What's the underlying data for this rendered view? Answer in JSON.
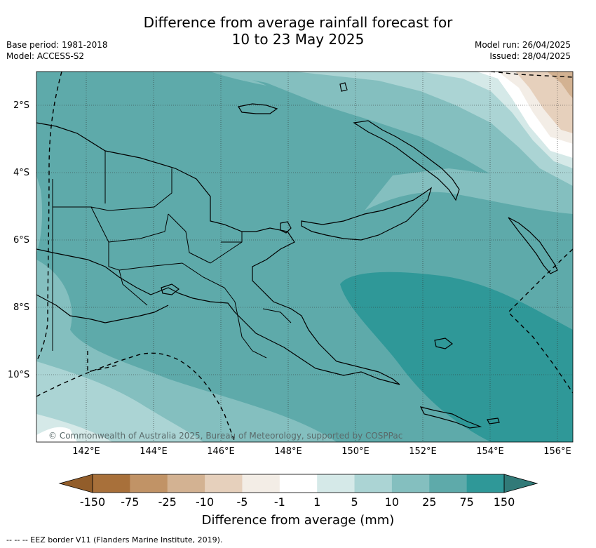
{
  "header": {
    "title_line1": "Difference from average rainfall forecast for",
    "title_line2": "10 to 23 May 2025",
    "base_period": "Base period: 1981-2018",
    "model": "Model: ACCESS-S2",
    "model_run": "Model run: 26/04/2025",
    "issued": "Issued: 28/04/2025"
  },
  "axes": {
    "lat_labels": [
      "2°S",
      "4°S",
      "6°S",
      "8°S",
      "10°S"
    ],
    "lon_labels": [
      "142°E",
      "144°E",
      "146°E",
      "148°E",
      "150°E",
      "152°E",
      "154°E",
      "156°E"
    ]
  },
  "map": {
    "copyright": "© Commonwealth of Australia 2025, Bureau of Meteorology, supported by COSPPac",
    "land_outline_color": "#000000"
  },
  "colorbar": {
    "title": "Difference from average (mm)",
    "labels": [
      "-150",
      "-75",
      "-25",
      "-10",
      "-5",
      "-1",
      "1",
      "5",
      "10",
      "25",
      "75",
      "150"
    ],
    "colors": [
      "#a8703a",
      "#c19366",
      "#d3b292",
      "#e6d0bc",
      "#f3ede6",
      "#ffffff",
      "#d5e9e8",
      "#abd4d4",
      "#84bfbf",
      "#5eaaaa",
      "#2f9898"
    ],
    "under_color": "#925d2a",
    "over_color": "#317a78"
  },
  "footnote": "--  --  -- EEZ border V11 (Flanders Marine Institute, 2019)."
}
